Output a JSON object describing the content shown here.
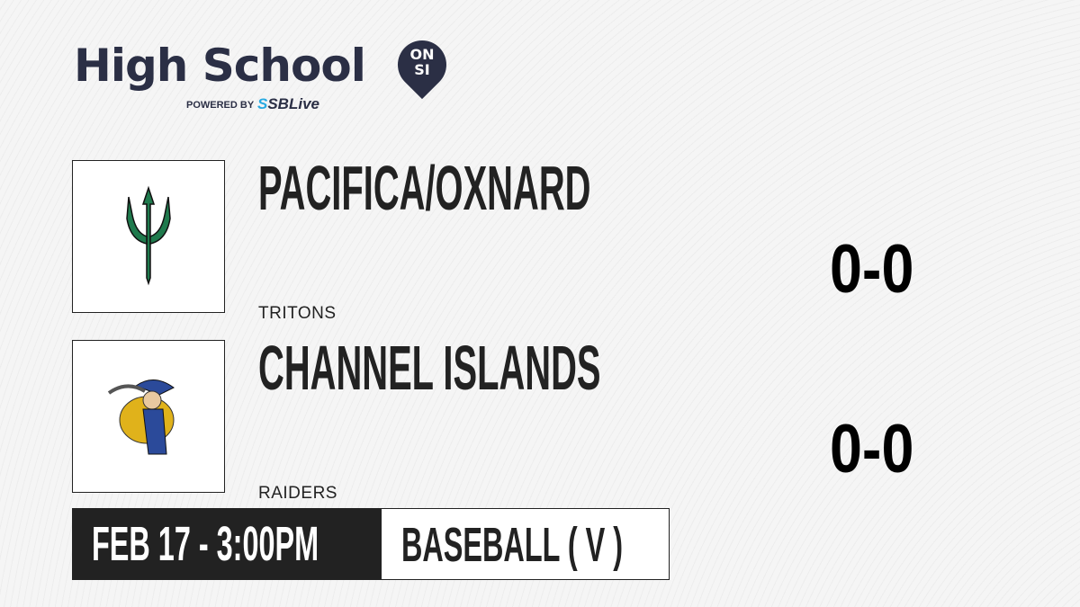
{
  "brand": {
    "title": "High School",
    "badge_top": "ON",
    "badge_bottom": "SI",
    "powered_by": "POWERED BY",
    "partner_prefix": "S",
    "partner": "SBLive",
    "colors": {
      "navy": "#2b2f45",
      "blue": "#27a9e1"
    }
  },
  "teams": [
    {
      "name": "PACIFICA/OXNARD",
      "mascot": "TRITONS",
      "score": "0-0",
      "logo": "trident-icon",
      "logo_color": "#1f7a4d"
    },
    {
      "name": "CHANNEL ISLANDS",
      "mascot": "RAIDERS",
      "score": "0-0",
      "logo": "raider-icon",
      "logo_color": "#e0b21b"
    }
  ],
  "game": {
    "datetime": "FEB 17 - 3:00PM",
    "sport": "BASEBALL ( V )"
  }
}
